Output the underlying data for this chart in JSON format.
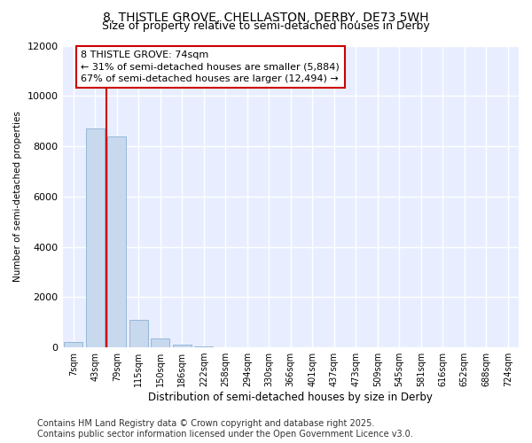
{
  "title_line1": "8, THISTLE GROVE, CHELLASTON, DERBY, DE73 5WH",
  "title_line2": "Size of property relative to semi-detached houses in Derby",
  "xlabel": "Distribution of semi-detached houses by size in Derby",
  "ylabel": "Number of semi-detached properties",
  "categories": [
    "7sqm",
    "43sqm",
    "79sqm",
    "115sqm",
    "150sqm",
    "186sqm",
    "222sqm",
    "258sqm",
    "294sqm",
    "330sqm",
    "366sqm",
    "401sqm",
    "437sqm",
    "473sqm",
    "509sqm",
    "545sqm",
    "581sqm",
    "616sqm",
    "652sqm",
    "688sqm",
    "724sqm"
  ],
  "values": [
    200,
    8700,
    8400,
    1100,
    350,
    100,
    50,
    0,
    0,
    0,
    0,
    0,
    0,
    0,
    0,
    0,
    0,
    0,
    0,
    0,
    0
  ],
  "bar_color": "#c8d9ee",
  "bar_edge_color": "#8ab0d4",
  "bg_color": "#ffffff",
  "plot_bg_color": "#e8eeff",
  "grid_color": "#ffffff",
  "vline_color": "#cc0000",
  "vline_x": 2,
  "annotation_text": "8 THISTLE GROVE: 74sqm\n← 31% of semi-detached houses are smaller (5,884)\n67% of semi-detached houses are larger (12,494) →",
  "annotation_box_color": "#ffffff",
  "annotation_box_edge": "#cc0000",
  "ylim": [
    0,
    12000
  ],
  "yticks": [
    0,
    2000,
    4000,
    6000,
    8000,
    10000,
    12000
  ],
  "footer": "Contains HM Land Registry data © Crown copyright and database right 2025.\nContains public sector information licensed under the Open Government Licence v3.0.",
  "title_fontsize": 10,
  "subtitle_fontsize": 9,
  "annot_fontsize": 8,
  "footer_fontsize": 7
}
